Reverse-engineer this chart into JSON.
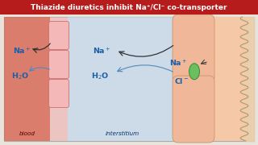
{
  "title": "Thiazide diuretics inhibit Na⁺/Cl⁻ co-transporter",
  "title_bg": "#b71c1c",
  "title_color": "#ffffff",
  "outer_bg": "#e8e4dc",
  "blood_color": "#d96b5a",
  "interstitium_color": "#c5d9ee",
  "cell_col_color": "#f0b0b0",
  "tubule_color": "#f5c9a8",
  "tubule_cell_color": "#f0b898",
  "green_transporter": "#6abf5e",
  "blood_label": "blood",
  "interstitium_label": "interstitium",
  "na_color": "#1a5fa8",
  "arrow_color": "#333333",
  "blue_arrow_color": "#5588bb",
  "title_fontsize": 6.5,
  "label_fontsize": 5.2,
  "ion_fontsize": 6.8
}
